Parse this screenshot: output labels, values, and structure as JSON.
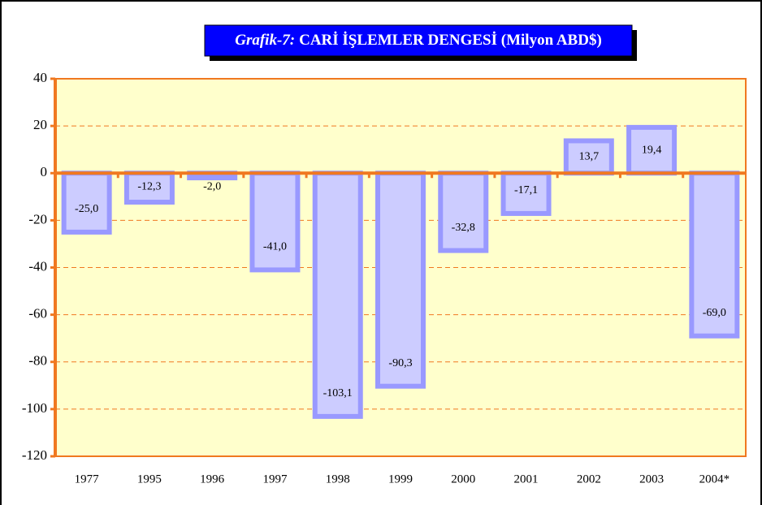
{
  "chart_data": {
    "type": "bar",
    "title_prefix": "Grafik-7:",
    "title": "CARİ İŞLEMLER DENGESİ (Milyon ABD$)",
    "categories": [
      "1977",
      "1995",
      "1996",
      "1997",
      "1998",
      "1999",
      "2000",
      "2001",
      "2002",
      "2003",
      "2004*"
    ],
    "values": [
      -25.0,
      -12.3,
      -2.0,
      -41.0,
      -103.1,
      -90.3,
      -32.8,
      -17.1,
      13.7,
      19.4,
      -69.0
    ],
    "value_labels": [
      "-25,0",
      "-12,3",
      "-2,0",
      "-41,0",
      "-103,1",
      "-90,3",
      "-32,8",
      "-17,1",
      "13,7",
      "19,4",
      "-69,0"
    ],
    "color": "#ccccff",
    "edge_color": "#9999ff",
    "ylim": [
      -120,
      40
    ],
    "yticks": [
      -120,
      -100,
      -80,
      -60,
      -40,
      -20,
      0,
      20,
      40
    ],
    "grid": true
  }
}
